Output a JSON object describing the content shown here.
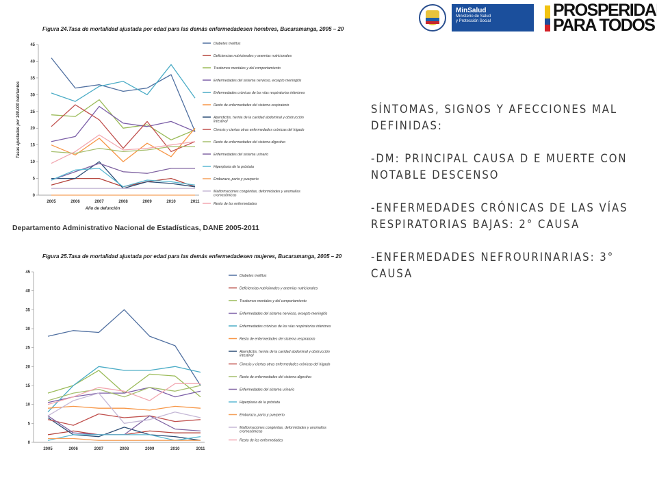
{
  "header": {
    "minsalud_title": "MinSalud",
    "minsalud_subtitle_1": "Ministerio de Salud",
    "minsalud_subtitle_2": "y Protección Social",
    "prosperidad_line_1": "PROSPERIDAD",
    "prosperidad_line_2": "PARA TODOS",
    "seal_name": "republica-de-colombia-seal",
    "colors": {
      "minsalud_blue": "#1b4f9c",
      "flag_yellow": "#f2c311",
      "flag_blue": "#1f4e9c",
      "flag_red": "#d32027"
    }
  },
  "source_text": "Departamento Administrativo Nacional de Estadísticas, DANE 2005-2011",
  "right_text": [
    "SÍNTOMAS, SIGNOS Y AFECCIONES MAL DEFINIDAS:",
    "-DM: PRINCIPAL CAUSA D E MUERTE CON NOTABLE DESCENSO",
    "-ENFERMEDADES CRÓNICAS DE LAS VÍAS RESPIRATORIAS BAJAS: 2° CAUSA",
    "-ENFERMEDADES NEFROURINARIAS: 3° CAUSA"
  ],
  "chart_data": [
    {
      "type": "line",
      "title": "Figura 24.Tasa de mortalidad ajustada por edad para las demás enfermedadesen hombres, Bucaramanga, 2005 – 20",
      "xlabel": "Año de defunción",
      "ylabel": "Tasas ajustadas por 100.000 habitantes",
      "ylim": [
        0,
        45
      ],
      "yticks": [
        "0",
        "5",
        "10",
        "15",
        "20",
        "25",
        "30",
        "35",
        "40",
        "45"
      ],
      "x": [
        "2005",
        "2006",
        "2007",
        "2008",
        "2009",
        "2010",
        "2011"
      ],
      "series": [
        {
          "name": "Diabetes mellitus",
          "color": "#4f6fa0",
          "values": [
            41,
            32,
            33,
            31,
            32,
            36,
            19
          ]
        },
        {
          "name": "Deficiencias nutricionales y anemias nutricionales",
          "color": "#b5443c",
          "values": [
            3,
            5,
            5,
            2.5,
            4,
            5,
            2.5
          ]
        },
        {
          "name": "Trastornos mentales y del comportamiento",
          "color": "#9bbb59",
          "values": [
            24,
            23.5,
            28.5,
            20,
            21,
            16.5,
            19.5
          ]
        },
        {
          "name": "Enfermedades del sistema nervioso, excepto meningitis",
          "color": "#7b5ea7",
          "values": [
            16,
            17.5,
            26.5,
            21.5,
            20.5,
            22,
            19
          ]
        },
        {
          "name": "Enfermedades crónicas de las vías respiratorias inferiores",
          "color": "#4bacc6",
          "values": [
            30.5,
            28,
            32.5,
            34,
            30,
            39,
            29
          ]
        },
        {
          "name": "Resto de enfermedades del sistema respiratorio",
          "color": "#f79646",
          "values": [
            15,
            12,
            17,
            10,
            15.5,
            11.5,
            20
          ]
        },
        {
          "name": "Apendicitis, hernia de la cavidad abdominal y obstrucción intestinal",
          "color": "#2c4d75",
          "values": [
            5,
            5,
            10,
            2,
            4,
            3.5,
            2.5
          ]
        },
        {
          "name": "Cirrosis y ciertas otras enfermedades crónicas del hígado",
          "color": "#c0504d",
          "values": [
            20.5,
            27,
            22.5,
            14,
            22,
            13,
            16
          ]
        },
        {
          "name": "Resto de enfermedades del sistema digestivo",
          "color": "#a6bf6e",
          "values": [
            13,
            12.5,
            14,
            13,
            13.5,
            14.5,
            14.5
          ]
        },
        {
          "name": "Enfermedades del sistema urinario",
          "color": "#8064a2",
          "values": [
            4.5,
            7,
            9.5,
            7,
            6.5,
            8,
            8
          ]
        },
        {
          "name": "Hiperplasia de la próstata",
          "color": "#5ab9d3",
          "values": [
            4.5,
            7.5,
            8,
            2.5,
            4.5,
            4,
            3
          ]
        },
        {
          "name": "Embarazo, parto y puerperio",
          "color": "#f5a05a",
          "values": [
            0,
            0,
            0,
            0,
            0,
            0,
            0
          ]
        },
        {
          "name": "Malformaciones congénitas, deformidades y anomalías cromosómicas",
          "color": "#c5b8d6",
          "values": [
            2,
            2,
            2,
            2,
            2,
            2,
            2
          ]
        },
        {
          "name": "Resto de las enfermedades",
          "color": "#f2a7b0",
          "values": [
            9.5,
            13,
            18,
            13.5,
            14,
            15,
            16
          ]
        }
      ]
    },
    {
      "type": "line",
      "title": "Figura 25.Tasa de mortalidad ajustada por edad para las demás enfermedadesen mujeres, Bucaramanga, 2005 – 20",
      "ylim": [
        0,
        45
      ],
      "yticks": [
        "0",
        "5",
        "10",
        "15",
        "20",
        "25",
        "30",
        "35",
        "40",
        "45"
      ],
      "x": [
        "2005",
        "2006",
        "2007",
        "2008",
        "2009",
        "2010",
        "2011"
      ],
      "series": [
        {
          "name": "Diabetes mellitus",
          "color": "#4f6fa0",
          "values": [
            28,
            29.5,
            29,
            35,
            28,
            25.5,
            15
          ]
        },
        {
          "name": "Deficiencias nutricionales y anemias nutricionales",
          "color": "#b5443c",
          "values": [
            2,
            3,
            2,
            2,
            3,
            2.5,
            2.5
          ]
        },
        {
          "name": "Trastornos mentales y del comportamiento",
          "color": "#9bbb59",
          "values": [
            13,
            15,
            19,
            13,
            18,
            17.5,
            12
          ]
        },
        {
          "name": "Enfermedades del sistema nervioso, excepto meningitis",
          "color": "#7b5ea7",
          "values": [
            10.5,
            12,
            13,
            13,
            14.5,
            12,
            13.5
          ]
        },
        {
          "name": "Enfermedades crónicas de las vías respiratorias inferiores",
          "color": "#4bacc6",
          "values": [
            8,
            15,
            20,
            19,
            19,
            20,
            18.5
          ]
        },
        {
          "name": "Resto de enfermedades del sistema respiratorio",
          "color": "#f79646",
          "values": [
            9,
            9.5,
            9,
            9,
            8.5,
            9.5,
            9
          ]
        },
        {
          "name": "Apendicitis, hernia de la cavidad abdominal y obstrucción intestinal",
          "color": "#2c4d75",
          "values": [
            6.5,
            2,
            1.5,
            4,
            2,
            1.5,
            0.5
          ]
        },
        {
          "name": "Cirrosis y ciertas otras enfermedades crónicas del hígado",
          "color": "#c0504d",
          "values": [
            6,
            4.5,
            7.5,
            6.5,
            7,
            5.5,
            6
          ]
        },
        {
          "name": "Resto de enfermedades del sistema digestivo",
          "color": "#a6bf6e",
          "values": [
            11,
            13,
            14,
            12,
            14.5,
            13.5,
            15
          ]
        },
        {
          "name": "Enfermedades del sistema urinario",
          "color": "#8064a2",
          "values": [
            7,
            2.5,
            2,
            2,
            7,
            3.5,
            3
          ]
        },
        {
          "name": "Hiperplasia de la próstata",
          "color": "#5ab9d3",
          "values": [
            0.5,
            2,
            2,
            2,
            2,
            0.5,
            1.5
          ]
        },
        {
          "name": "Embarazo, parto y puerperio",
          "color": "#f5a05a",
          "values": [
            1,
            1,
            0.5,
            0.5,
            0.5,
            0.5,
            0.5
          ]
        },
        {
          "name": "Malformaciones congénitas, deformidades y anomalías cromosómicas",
          "color": "#c5b8d6",
          "values": [
            7,
            11,
            13,
            5,
            6,
            8,
            6.5
          ]
        },
        {
          "name": "Resto de las enfermedades",
          "color": "#f2a7b0",
          "values": [
            10,
            12,
            14.5,
            13.5,
            11,
            15.5,
            15.5
          ]
        }
      ]
    }
  ]
}
